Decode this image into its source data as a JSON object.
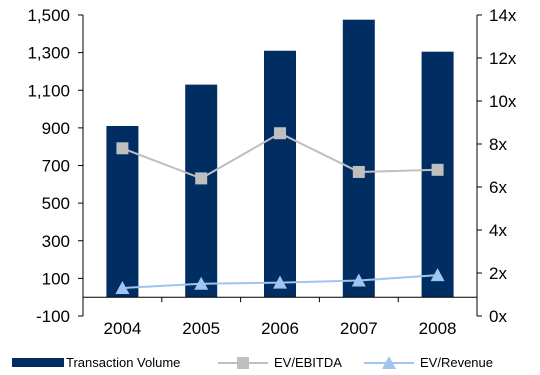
{
  "chart_data": {
    "type": "bar",
    "categories": [
      "2004",
      "2005",
      "2006",
      "2007",
      "2008"
    ],
    "left_axis": {
      "ylim": [
        -100,
        1500
      ],
      "ticks": [
        -100,
        100,
        300,
        500,
        700,
        900,
        1100,
        1300,
        1500
      ],
      "tick_labels": [
        "-100",
        "100",
        "300",
        "500",
        "700",
        "900",
        "1,100",
        "1,300",
        "1,500"
      ]
    },
    "right_axis": {
      "ylim": [
        0,
        14
      ],
      "ticks": [
        0,
        2,
        4,
        6,
        8,
        10,
        12,
        14
      ],
      "tick_labels": [
        "0x",
        "2x",
        "4x",
        "6x",
        "8x",
        "10x",
        "12x",
        "14x"
      ]
    },
    "series": [
      {
        "name": "Transaction Volume",
        "type": "bar",
        "axis": "left",
        "color": "#002d62",
        "values": [
          910,
          1130,
          1310,
          1475,
          1305
        ]
      },
      {
        "name": "EV/EBITDA",
        "type": "line",
        "axis": "right",
        "color": "#bfbfbf",
        "marker": "square",
        "values": [
          7.8,
          6.4,
          8.5,
          6.7,
          6.8
        ]
      },
      {
        "name": "EV/Revenue",
        "type": "line",
        "axis": "right",
        "color": "#9fc5f0",
        "marker": "triangle",
        "values": [
          1.3,
          1.5,
          1.55,
          1.65,
          1.9
        ]
      }
    ],
    "legend_position": "bottom",
    "grid": false
  }
}
